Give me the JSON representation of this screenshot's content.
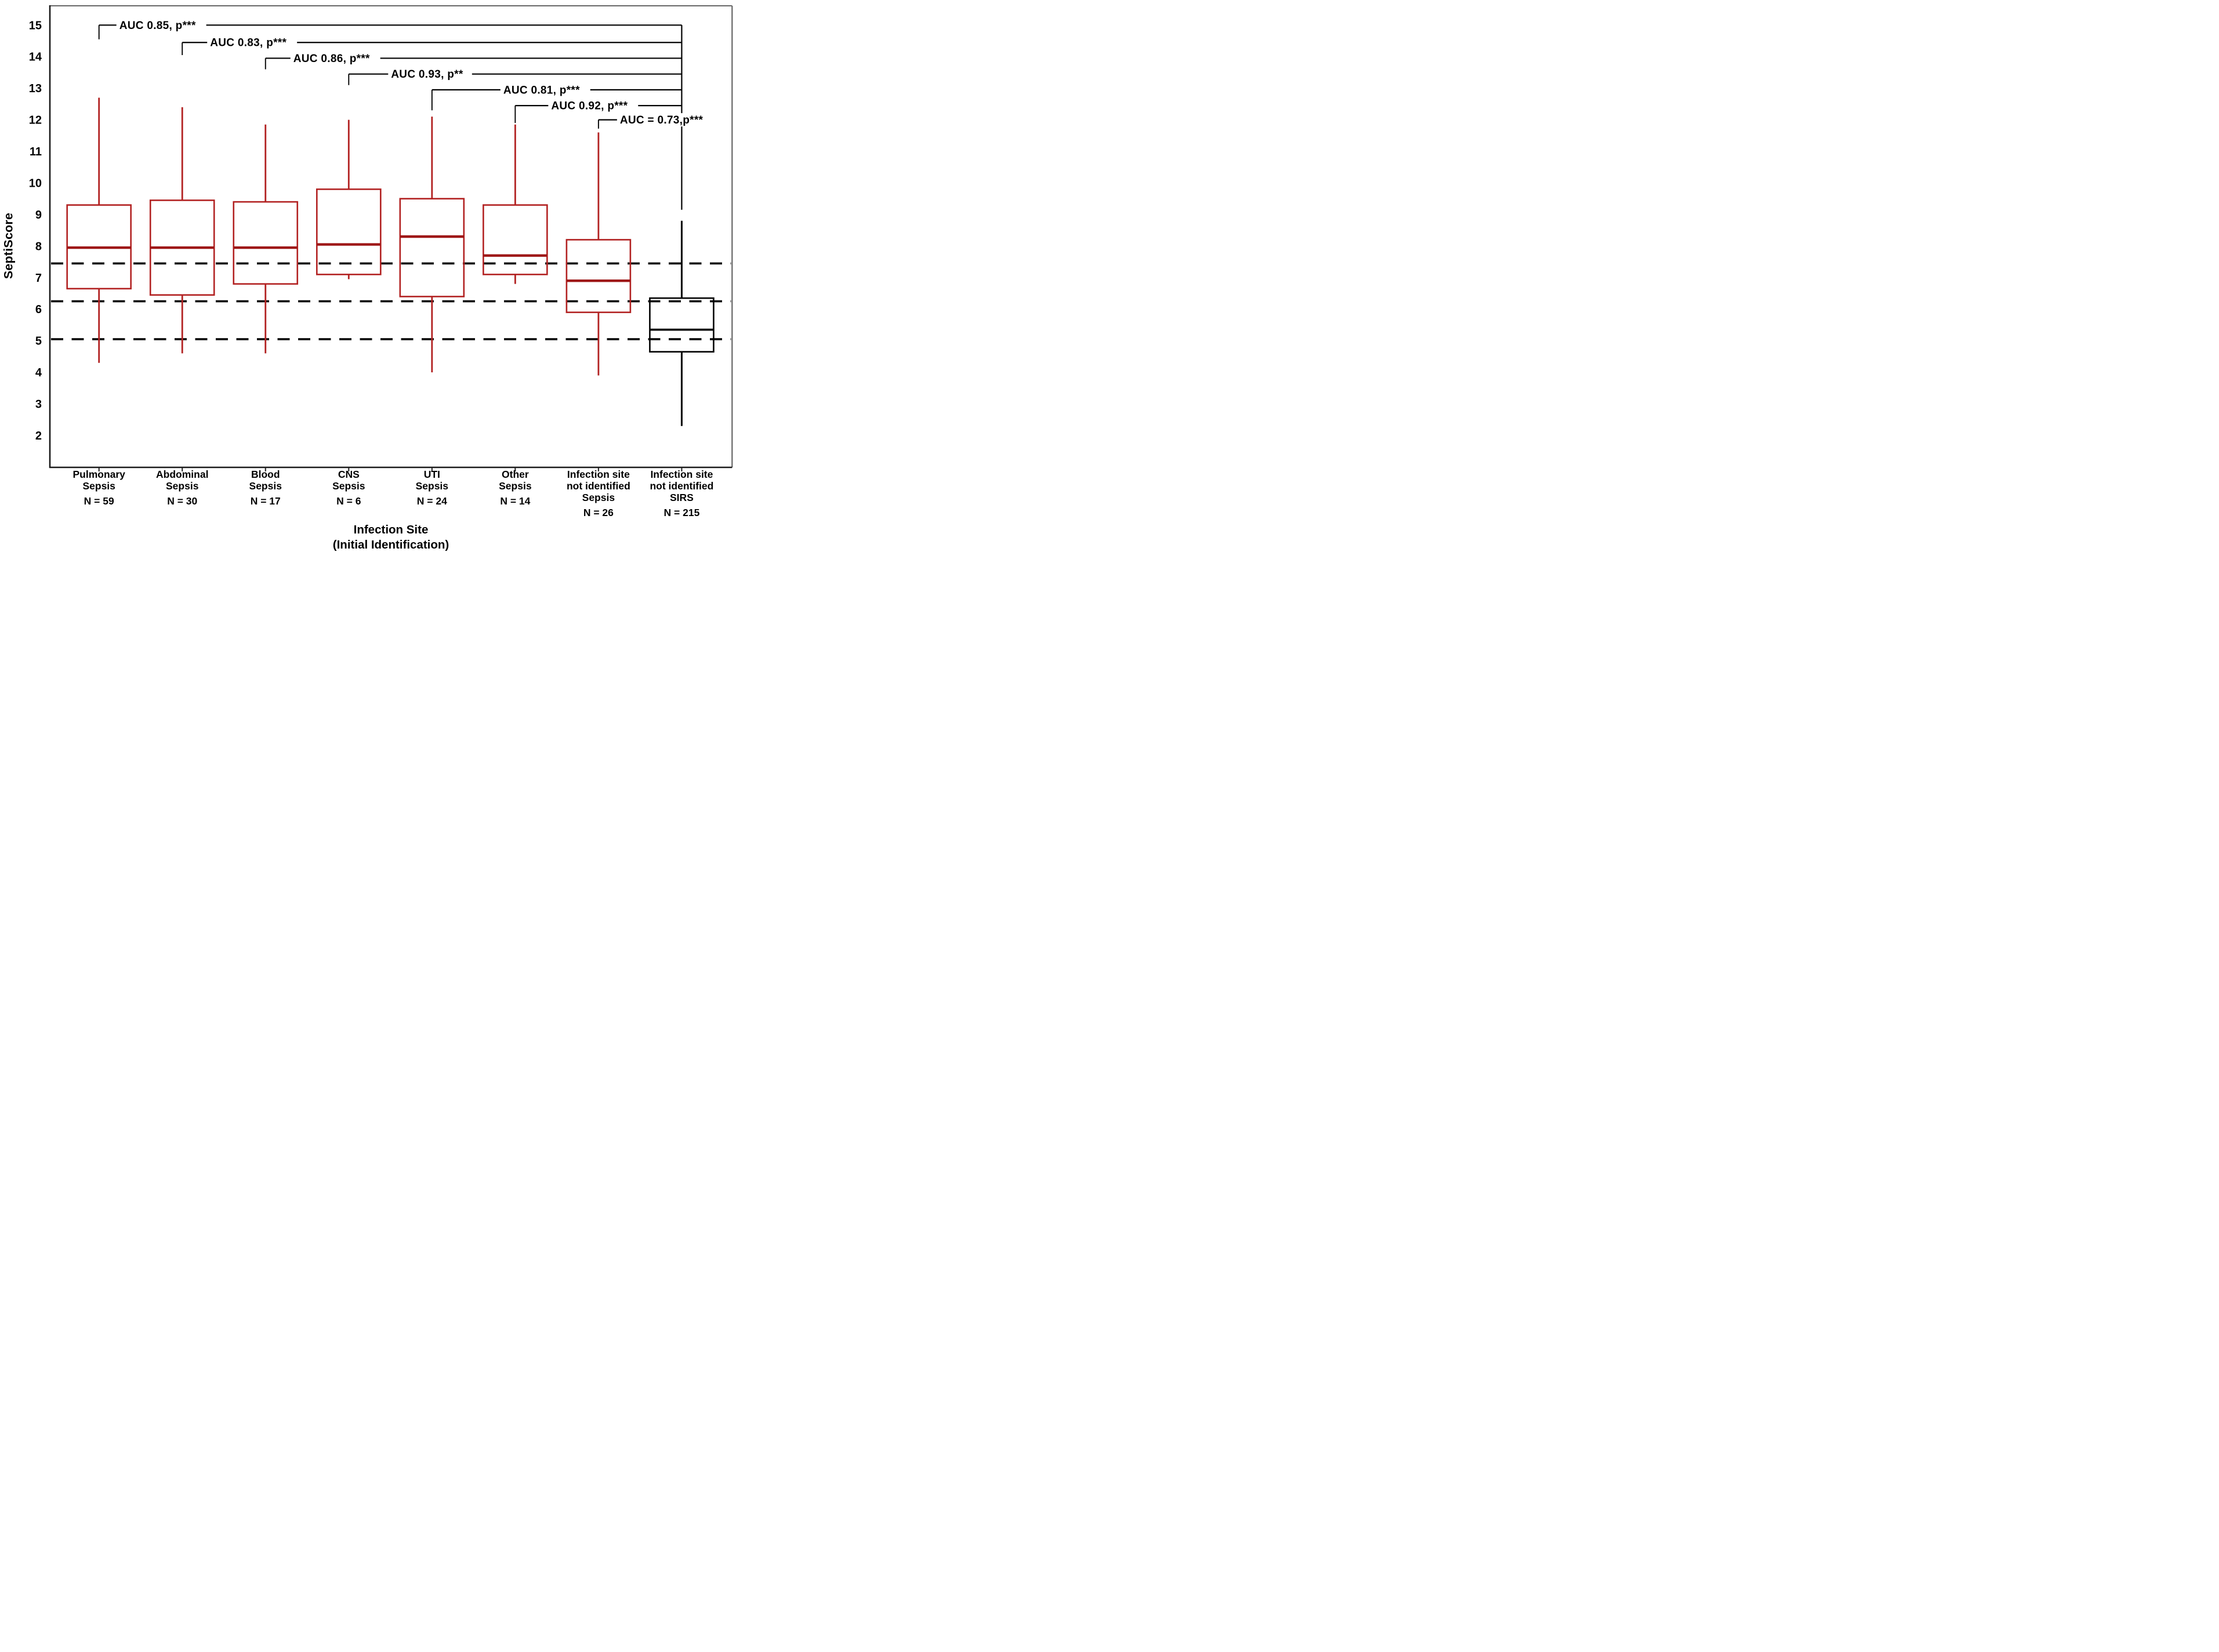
{
  "chart_data": {
    "type": "boxplot",
    "title": "",
    "ylabel": "SeptiScore",
    "xlabel": [
      "Infection Site",
      "(Initial Identification)"
    ],
    "y_ticks": [
      15,
      14,
      13,
      12,
      11,
      10,
      9,
      8,
      7,
      6,
      5,
      4,
      3,
      2
    ],
    "ylim": [
      1.3,
      15.7
    ],
    "grid": false,
    "legend_position": "none",
    "threshold_lines": {
      "style": "dashed",
      "color": "#0d0d0d",
      "values": [
        7.45,
        6.25,
        5.05
      ]
    },
    "colors": {
      "sepsis_box": "#b22222",
      "sepsis_median": "#9e1717",
      "sirs_box": "#000000",
      "bracket": "#000000",
      "axis": "#1a1a1a"
    },
    "categories": [
      {
        "label_lines": [
          "Pulmonary",
          "Sepsis"
        ],
        "n_label": "N = 59",
        "n": 59,
        "group": "sepsis",
        "whisker_low": 4.3,
        "q1": 6.65,
        "median": 7.95,
        "q3": 9.3,
        "whisker_high": 12.7
      },
      {
        "label_lines": [
          "Abdominal",
          "Sepsis"
        ],
        "n_label": "N = 30",
        "n": 30,
        "group": "sepsis",
        "whisker_low": 4.6,
        "q1": 6.45,
        "median": 7.95,
        "q3": 9.45,
        "whisker_high": 12.4
      },
      {
        "label_lines": [
          "Blood",
          "Sepsis"
        ],
        "n_label": "N = 17",
        "n": 17,
        "group": "sepsis",
        "whisker_low": 4.6,
        "q1": 6.8,
        "median": 7.95,
        "q3": 9.4,
        "whisker_high": 11.85
      },
      {
        "label_lines": [
          "CNS",
          "Sepsis"
        ],
        "n_label": "N = 6",
        "n": 6,
        "group": "sepsis",
        "whisker_low": 6.95,
        "q1": 7.1,
        "median": 8.05,
        "q3": 9.8,
        "whisker_high": 12.0
      },
      {
        "label_lines": [
          "UTI",
          "Sepsis"
        ],
        "n_label": "N = 24",
        "n": 24,
        "group": "sepsis",
        "whisker_low": 4.0,
        "q1": 6.4,
        "median": 8.3,
        "q3": 9.5,
        "whisker_high": 12.1
      },
      {
        "label_lines": [
          "Other",
          "Sepsis"
        ],
        "n_label": "N = 14",
        "n": 14,
        "group": "sepsis",
        "whisker_low": 6.8,
        "q1": 7.1,
        "median": 7.7,
        "q3": 9.3,
        "whisker_high": 11.85
      },
      {
        "label_lines": [
          "Infection site",
          "not identified",
          "Sepsis"
        ],
        "n_label": "N = 26",
        "n": 26,
        "group": "sepsis",
        "whisker_low": 3.9,
        "q1": 5.9,
        "median": 6.9,
        "q3": 8.2,
        "whisker_high": 11.6
      },
      {
        "label_lines": [
          "Infection site",
          "not identified",
          "SIRS"
        ],
        "n_label": "N = 215",
        "n": 215,
        "group": "sirs",
        "whisker_low": 2.3,
        "q1": 4.65,
        "median": 5.35,
        "q3": 6.35,
        "whisker_high": 8.8
      }
    ],
    "comparisons": [
      {
        "label": "AUC 0.85, p***",
        "from": 0,
        "to": 7,
        "line_y": 15.0,
        "drop_to": 14.55,
        "text_dx": 35
      },
      {
        "label": "AUC 0.83, p***",
        "from": 1,
        "to": 7,
        "line_y": 14.45,
        "drop_to": 14.05,
        "text_dx": 48
      },
      {
        "label": "AUC 0.86, p***",
        "from": 2,
        "to": 7,
        "line_y": 13.95,
        "drop_to": 13.6,
        "text_dx": 48
      },
      {
        "label": "AUC 0.93, p**",
        "from": 3,
        "to": 7,
        "line_y": 13.45,
        "drop_to": 13.1,
        "text_dx": 73
      },
      {
        "label": "AUC 0.81, p***",
        "from": 4,
        "to": 7,
        "line_y": 12.95,
        "drop_to": 12.3,
        "text_dx": 123
      },
      {
        "label": "AUC 0.92, p***",
        "from": 5,
        "to": 7,
        "line_y": 12.45,
        "drop_to": 11.9,
        "text_dx": 62
      },
      {
        "label": "AUC = 0.73,p***",
        "from": 6,
        "to": 7,
        "line_y": 12.0,
        "drop_to": 11.72,
        "text_dx": 37
      }
    ],
    "right_ladder_bottom": 9.15
  }
}
